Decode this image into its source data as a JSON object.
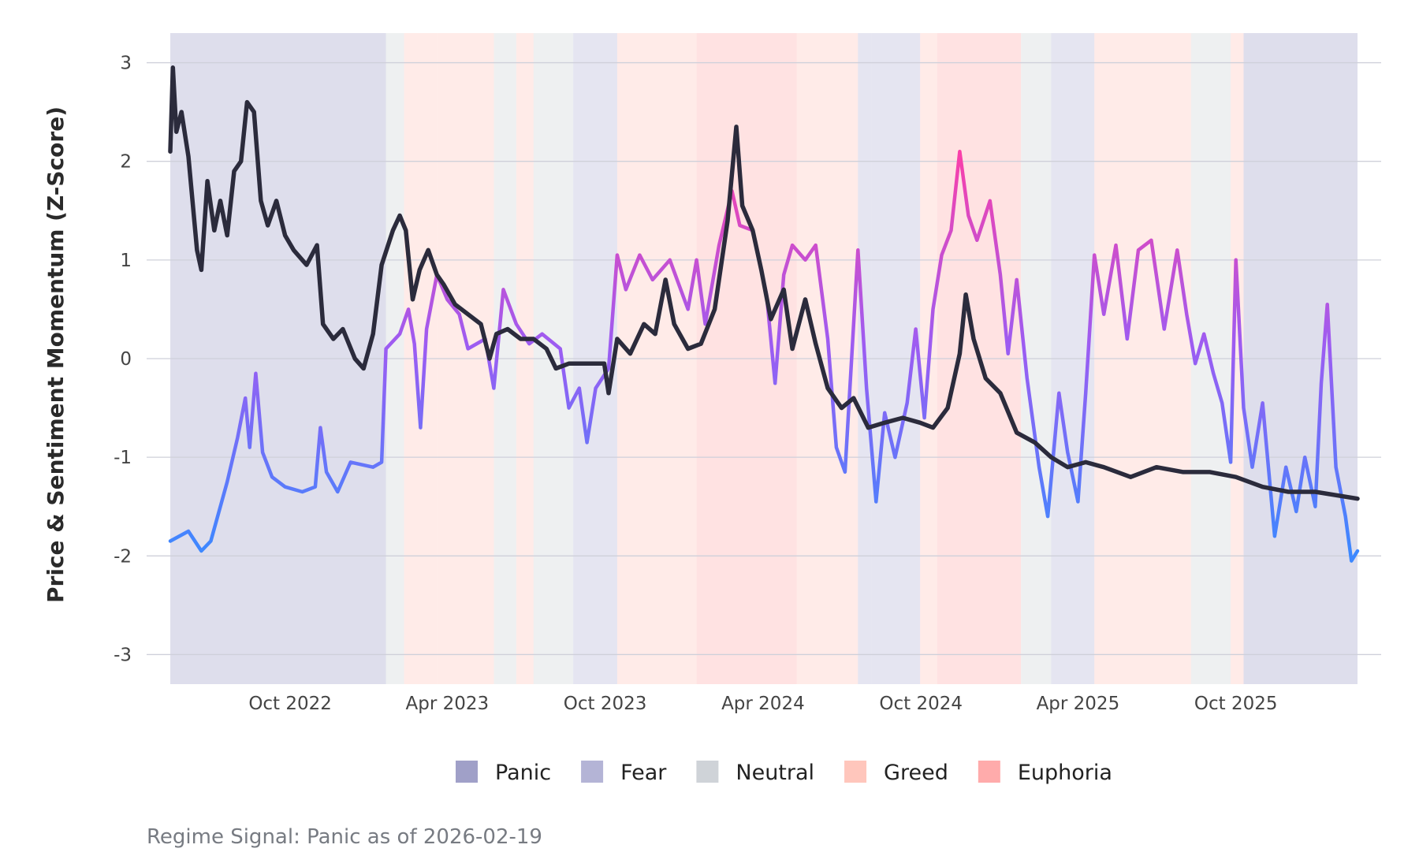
{
  "chart_data": {
    "type": "line",
    "title": "",
    "xlabel": "",
    "ylabel": "Price & Sentiment Momentum (Z-Score)",
    "ylim": [
      -3.3,
      3.3
    ],
    "xlim": [
      "2022-05-15",
      "2026-02-19"
    ],
    "y_ticks": [
      3,
      2,
      1,
      0,
      -1,
      -2,
      -3
    ],
    "y_tick_labels": [
      "3",
      "2",
      "1",
      "0",
      "-1",
      "-2",
      "-3"
    ],
    "x_ticks": [
      {
        "date": "2022-10-01",
        "label": "Oct 2022"
      },
      {
        "date": "2023-04-01",
        "label": "Apr 2023"
      },
      {
        "date": "2023-10-01",
        "label": "Oct 2023"
      },
      {
        "date": "2024-04-01",
        "label": "Apr 2024"
      },
      {
        "date": "2024-10-01",
        "label": "Oct 2024"
      },
      {
        "date": "2025-04-01",
        "label": "Apr 2025"
      },
      {
        "date": "2025-10-01",
        "label": "Oct 2025"
      }
    ],
    "grid": true,
    "legend_position": "bottom",
    "legend": [
      {
        "label": "Panic",
        "color": "#a0a0c8"
      },
      {
        "label": "Fear",
        "color": "#b4b4d6"
      },
      {
        "label": "Neutral",
        "color": "#cfd3d8"
      },
      {
        "label": "Greed",
        "color": "#ffc6bc"
      },
      {
        "label": "Euphoria",
        "color": "#ffabab"
      }
    ],
    "regimes": [
      {
        "start": "2022-05-15",
        "end": "2023-01-20",
        "regime": "Panic"
      },
      {
        "start": "2023-01-20",
        "end": "2023-02-10",
        "regime": "Neutral"
      },
      {
        "start": "2023-02-10",
        "end": "2023-03-20",
        "regime": "Greed"
      },
      {
        "start": "2023-03-20",
        "end": "2023-05-25",
        "regime": "Greed"
      },
      {
        "start": "2023-05-25",
        "end": "2023-06-20",
        "regime": "Neutral"
      },
      {
        "start": "2023-06-20",
        "end": "2023-07-10",
        "regime": "Greed"
      },
      {
        "start": "2023-07-10",
        "end": "2023-08-25",
        "regime": "Neutral"
      },
      {
        "start": "2023-08-25",
        "end": "2023-10-15",
        "regime": "Fear"
      },
      {
        "start": "2023-10-15",
        "end": "2024-01-15",
        "regime": "Greed"
      },
      {
        "start": "2024-01-15",
        "end": "2024-05-10",
        "regime": "Euphoria"
      },
      {
        "start": "2024-05-10",
        "end": "2024-07-20",
        "regime": "Greed"
      },
      {
        "start": "2024-07-20",
        "end": "2024-08-05",
        "regime": "Fear"
      },
      {
        "start": "2024-08-05",
        "end": "2024-09-30",
        "regime": "Fear"
      },
      {
        "start": "2024-09-30",
        "end": "2024-10-20",
        "regime": "Greed"
      },
      {
        "start": "2024-10-20",
        "end": "2025-01-25",
        "regime": "Euphoria"
      },
      {
        "start": "2025-01-25",
        "end": "2025-03-01",
        "regime": "Neutral"
      },
      {
        "start": "2025-03-01",
        "end": "2025-04-20",
        "regime": "Fear"
      },
      {
        "start": "2025-04-20",
        "end": "2025-08-10",
        "regime": "Greed"
      },
      {
        "start": "2025-08-10",
        "end": "2025-09-25",
        "regime": "Neutral"
      },
      {
        "start": "2025-09-25",
        "end": "2025-10-10",
        "regime": "Greed"
      },
      {
        "start": "2025-10-10",
        "end": "2026-02-19",
        "regime": "Panic"
      }
    ],
    "series": [
      {
        "color": "#2b2b3c",
        "points": [
          [
            "2022-05-15",
            2.1
          ],
          [
            "2022-05-18",
            2.95
          ],
          [
            "2022-05-22",
            2.3
          ],
          [
            "2022-05-28",
            2.5
          ],
          [
            "2022-06-05",
            2.05
          ],
          [
            "2022-06-15",
            1.1
          ],
          [
            "2022-06-20",
            0.9
          ],
          [
            "2022-06-27",
            1.8
          ],
          [
            "2022-07-05",
            1.3
          ],
          [
            "2022-07-12",
            1.6
          ],
          [
            "2022-07-20",
            1.25
          ],
          [
            "2022-07-28",
            1.9
          ],
          [
            "2022-08-05",
            2.0
          ],
          [
            "2022-08-12",
            2.6
          ],
          [
            "2022-08-20",
            2.5
          ],
          [
            "2022-08-28",
            1.6
          ],
          [
            "2022-09-05",
            1.35
          ],
          [
            "2022-09-15",
            1.6
          ],
          [
            "2022-09-25",
            1.25
          ],
          [
            "2022-10-05",
            1.1
          ],
          [
            "2022-10-20",
            0.95
          ],
          [
            "2022-11-01",
            1.15
          ],
          [
            "2022-11-08",
            0.35
          ],
          [
            "2022-11-20",
            0.2
          ],
          [
            "2022-12-01",
            0.3
          ],
          [
            "2022-12-15",
            0.0
          ],
          [
            "2022-12-25",
            -0.1
          ],
          [
            "2023-01-05",
            0.25
          ],
          [
            "2023-01-15",
            0.95
          ],
          [
            "2023-01-28",
            1.3
          ],
          [
            "2023-02-05",
            1.45
          ],
          [
            "2023-02-12",
            1.3
          ],
          [
            "2023-02-20",
            0.6
          ],
          [
            "2023-02-28",
            0.9
          ],
          [
            "2023-03-10",
            1.1
          ],
          [
            "2023-03-20",
            0.85
          ],
          [
            "2023-03-28",
            0.75
          ],
          [
            "2023-04-10",
            0.55
          ],
          [
            "2023-04-25",
            0.45
          ],
          [
            "2023-05-10",
            0.35
          ],
          [
            "2023-05-20",
            0.0
          ],
          [
            "2023-05-28",
            0.25
          ],
          [
            "2023-06-10",
            0.3
          ],
          [
            "2023-06-25",
            0.2
          ],
          [
            "2023-07-10",
            0.2
          ],
          [
            "2023-07-25",
            0.1
          ],
          [
            "2023-08-05",
            -0.1
          ],
          [
            "2023-08-20",
            -0.05
          ],
          [
            "2023-09-10",
            -0.05
          ],
          [
            "2023-09-30",
            -0.05
          ],
          [
            "2023-10-05",
            -0.35
          ],
          [
            "2023-10-15",
            0.2
          ],
          [
            "2023-10-30",
            0.05
          ],
          [
            "2023-11-15",
            0.35
          ],
          [
            "2023-11-28",
            0.25
          ],
          [
            "2023-12-10",
            0.8
          ],
          [
            "2023-12-20",
            0.35
          ],
          [
            "2024-01-05",
            0.1
          ],
          [
            "2024-01-20",
            0.15
          ],
          [
            "2024-02-05",
            0.5
          ],
          [
            "2024-02-20",
            1.4
          ],
          [
            "2024-03-01",
            2.35
          ],
          [
            "2024-03-08",
            1.55
          ],
          [
            "2024-03-20",
            1.3
          ],
          [
            "2024-03-30",
            0.9
          ],
          [
            "2024-04-10",
            0.4
          ],
          [
            "2024-04-25",
            0.7
          ],
          [
            "2024-05-05",
            0.1
          ],
          [
            "2024-05-20",
            0.6
          ],
          [
            "2024-06-01",
            0.15
          ],
          [
            "2024-06-15",
            -0.3
          ],
          [
            "2024-07-01",
            -0.5
          ],
          [
            "2024-07-15",
            -0.4
          ],
          [
            "2024-08-01",
            -0.7
          ],
          [
            "2024-08-20",
            -0.65
          ],
          [
            "2024-09-10",
            -0.6
          ],
          [
            "2024-09-30",
            -0.65
          ],
          [
            "2024-10-15",
            -0.7
          ],
          [
            "2024-11-01",
            -0.5
          ],
          [
            "2024-11-15",
            0.05
          ],
          [
            "2024-11-22",
            0.65
          ],
          [
            "2024-12-01",
            0.2
          ],
          [
            "2024-12-15",
            -0.2
          ],
          [
            "2025-01-01",
            -0.35
          ],
          [
            "2025-01-20",
            -0.75
          ],
          [
            "2025-02-10",
            -0.85
          ],
          [
            "2025-03-01",
            -1.0
          ],
          [
            "2025-03-20",
            -1.1
          ],
          [
            "2025-04-10",
            -1.05
          ],
          [
            "2025-05-01",
            -1.1
          ],
          [
            "2025-06-01",
            -1.2
          ],
          [
            "2025-07-01",
            -1.1
          ],
          [
            "2025-08-01",
            -1.15
          ],
          [
            "2025-09-01",
            -1.15
          ],
          [
            "2025-10-01",
            -1.2
          ],
          [
            "2025-11-01",
            -1.3
          ],
          [
            "2025-12-01",
            -1.35
          ],
          [
            "2026-01-01",
            -1.35
          ],
          [
            "2026-02-19",
            -1.42
          ]
        ]
      },
      {
        "color": "#8a5cf5",
        "points": [
          [
            "2022-05-15",
            -1.85
          ],
          [
            "2022-06-05",
            -1.75
          ],
          [
            "2022-06-20",
            -1.95
          ],
          [
            "2022-07-01",
            -1.85
          ],
          [
            "2022-07-20",
            -1.25
          ],
          [
            "2022-08-01",
            -0.8
          ],
          [
            "2022-08-10",
            -0.4
          ],
          [
            "2022-08-15",
            -0.9
          ],
          [
            "2022-08-22",
            -0.15
          ],
          [
            "2022-08-30",
            -0.95
          ],
          [
            "2022-09-10",
            -1.2
          ],
          [
            "2022-09-25",
            -1.3
          ],
          [
            "2022-10-15",
            -1.35
          ],
          [
            "2022-10-30",
            -1.3
          ],
          [
            "2022-11-05",
            -0.7
          ],
          [
            "2022-11-12",
            -1.15
          ],
          [
            "2022-11-25",
            -1.35
          ],
          [
            "2022-12-10",
            -1.05
          ],
          [
            "2023-01-05",
            -1.1
          ],
          [
            "2023-01-15",
            -1.05
          ],
          [
            "2023-01-20",
            0.1
          ],
          [
            "2023-02-05",
            0.25
          ],
          [
            "2023-02-15",
            0.5
          ],
          [
            "2023-02-22",
            0.15
          ],
          [
            "2023-03-01",
            -0.7
          ],
          [
            "2023-03-08",
            0.3
          ],
          [
            "2023-03-20",
            0.85
          ],
          [
            "2023-04-01",
            0.6
          ],
          [
            "2023-04-15",
            0.45
          ],
          [
            "2023-04-25",
            0.1
          ],
          [
            "2023-05-15",
            0.2
          ],
          [
            "2023-05-25",
            -0.3
          ],
          [
            "2023-06-05",
            0.7
          ],
          [
            "2023-06-20",
            0.35
          ],
          [
            "2023-07-05",
            0.15
          ],
          [
            "2023-07-20",
            0.25
          ],
          [
            "2023-08-10",
            0.1
          ],
          [
            "2023-08-20",
            -0.5
          ],
          [
            "2023-09-01",
            -0.3
          ],
          [
            "2023-09-10",
            -0.85
          ],
          [
            "2023-09-20",
            -0.3
          ],
          [
            "2023-10-05",
            -0.1
          ],
          [
            "2023-10-15",
            1.05
          ],
          [
            "2023-10-25",
            0.7
          ],
          [
            "2023-11-10",
            1.05
          ],
          [
            "2023-11-25",
            0.8
          ],
          [
            "2023-12-15",
            1.0
          ],
          [
            "2024-01-05",
            0.5
          ],
          [
            "2024-01-15",
            1.0
          ],
          [
            "2024-01-25",
            0.35
          ],
          [
            "2024-02-10",
            1.15
          ],
          [
            "2024-02-25",
            1.7
          ],
          [
            "2024-03-05",
            1.35
          ],
          [
            "2024-03-20",
            1.3
          ],
          [
            "2024-04-05",
            0.65
          ],
          [
            "2024-04-15",
            -0.25
          ],
          [
            "2024-04-25",
            0.85
          ],
          [
            "2024-05-05",
            1.15
          ],
          [
            "2024-05-20",
            1.0
          ],
          [
            "2024-06-01",
            1.15
          ],
          [
            "2024-06-15",
            0.2
          ],
          [
            "2024-06-25",
            -0.9
          ],
          [
            "2024-07-05",
            -1.15
          ],
          [
            "2024-07-20",
            1.1
          ],
          [
            "2024-07-30",
            -0.3
          ],
          [
            "2024-08-10",
            -1.45
          ],
          [
            "2024-08-20",
            -0.55
          ],
          [
            "2024-09-01",
            -1.0
          ],
          [
            "2024-09-15",
            -0.45
          ],
          [
            "2024-09-25",
            0.3
          ],
          [
            "2024-10-05",
            -0.6
          ],
          [
            "2024-10-15",
            0.5
          ],
          [
            "2024-10-25",
            1.05
          ],
          [
            "2024-11-05",
            1.3
          ],
          [
            "2024-11-15",
            2.1
          ],
          [
            "2024-11-25",
            1.45
          ],
          [
            "2024-12-05",
            1.2
          ],
          [
            "2024-12-20",
            1.6
          ],
          [
            "2025-01-01",
            0.85
          ],
          [
            "2025-01-10",
            0.05
          ],
          [
            "2025-01-20",
            0.8
          ],
          [
            "2025-02-01",
            -0.2
          ],
          [
            "2025-02-15",
            -1.1
          ],
          [
            "2025-02-25",
            -1.6
          ],
          [
            "2025-03-10",
            -0.35
          ],
          [
            "2025-03-20",
            -0.95
          ],
          [
            "2025-04-01",
            -1.45
          ],
          [
            "2025-04-10",
            -0.35
          ],
          [
            "2025-04-20",
            1.05
          ],
          [
            "2025-05-01",
            0.45
          ],
          [
            "2025-05-15",
            1.15
          ],
          [
            "2025-05-28",
            0.2
          ],
          [
            "2025-06-10",
            1.1
          ],
          [
            "2025-06-25",
            1.2
          ],
          [
            "2025-07-10",
            0.3
          ],
          [
            "2025-07-25",
            1.1
          ],
          [
            "2025-08-05",
            0.45
          ],
          [
            "2025-08-15",
            -0.05
          ],
          [
            "2025-08-25",
            0.25
          ],
          [
            "2025-09-05",
            -0.15
          ],
          [
            "2025-09-15",
            -0.45
          ],
          [
            "2025-09-25",
            -1.05
          ],
          [
            "2025-10-01",
            1.0
          ],
          [
            "2025-10-10",
            -0.5
          ],
          [
            "2025-10-20",
            -1.1
          ],
          [
            "2025-11-01",
            -0.45
          ],
          [
            "2025-11-15",
            -1.8
          ],
          [
            "2025-11-28",
            -1.1
          ],
          [
            "2025-12-10",
            -1.55
          ],
          [
            "2025-12-20",
            -1.0
          ],
          [
            "2026-01-01",
            -1.5
          ],
          [
            "2026-01-08",
            -0.25
          ],
          [
            "2026-01-15",
            0.55
          ],
          [
            "2026-01-25",
            -1.1
          ],
          [
            "2026-02-05",
            -1.6
          ],
          [
            "2026-02-12",
            -2.05
          ],
          [
            "2026-02-19",
            -1.95
          ]
        ]
      }
    ]
  },
  "caption": "Regime Signal: Panic as of 2026-02-19"
}
